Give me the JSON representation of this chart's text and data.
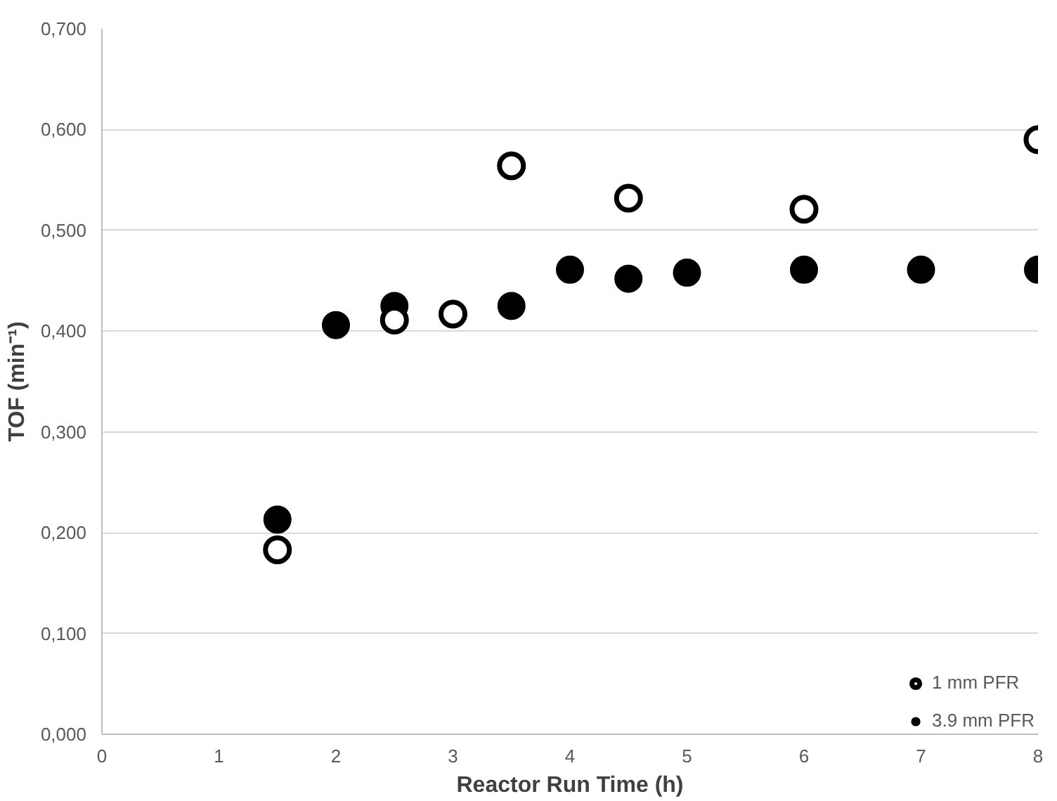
{
  "chart_data": {
    "type": "scatter",
    "xlabel": "Reactor Run Time (h)",
    "ylabel": "TOF (min⁻¹)",
    "xlim": [
      0,
      8
    ],
    "xticks": [
      0,
      1,
      2,
      3,
      4,
      5,
      6,
      7,
      8
    ],
    "ylim": [
      0,
      0.7
    ],
    "yticks": [
      {
        "value": 0,
        "label": "0,000"
      },
      {
        "value": 0.1,
        "label": "0,100"
      },
      {
        "value": 0.2,
        "label": "0,200"
      },
      {
        "value": 0.3,
        "label": "0,300"
      },
      {
        "value": 0.4,
        "label": "0,400"
      },
      {
        "value": 0.5,
        "label": "0,500"
      },
      {
        "value": 0.6,
        "label": "0,600"
      },
      {
        "value": 0.7,
        "label": "0,700"
      }
    ],
    "grid": "y",
    "legend": "bottom right",
    "series": [
      {
        "name": "1 mm PFR",
        "color": "#000000",
        "marker": "circle_open",
        "x": [
          1.5,
          2.5,
          3,
          3.5,
          4.5,
          6,
          8
        ],
        "values": [
          0.183,
          0.411,
          0.417,
          0.564,
          0.532,
          0.521,
          0.59
        ]
      },
      {
        "name": "3.9 mm PFR",
        "color": "#000000",
        "marker": "circle",
        "x": [
          1.5,
          2,
          2.5,
          3.5,
          4,
          4.5,
          5,
          6,
          7,
          8
        ],
        "values": [
          0.213,
          0.406,
          0.425,
          0.425,
          0.461,
          0.452,
          0.458,
          0.461,
          0.461,
          0.461
        ]
      }
    ]
  }
}
